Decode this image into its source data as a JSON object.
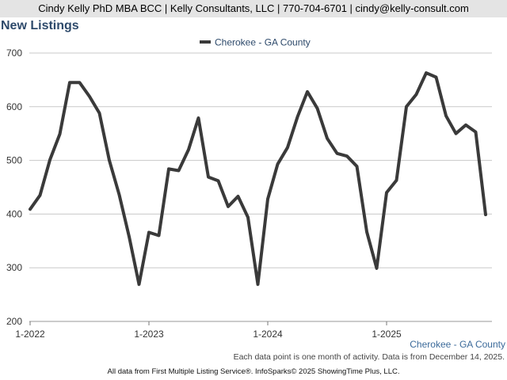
{
  "header": {
    "contact": "Cindy Kelly PhD MBA BCC | Kelly Consultants, LLC | 770-704-6701 | cindy@kelly-consult.com"
  },
  "chart_data": {
    "type": "line",
    "title": "New Listings",
    "xlabel": "",
    "ylabel": "",
    "ylim": [
      200,
      700
    ],
    "yticks": [
      200,
      300,
      400,
      500,
      600,
      700
    ],
    "xtick_labels": [
      "1-2022",
      "1-2023",
      "1-2024",
      "1-2025"
    ],
    "x_months_start": "1-2022",
    "legend_position": "top-center",
    "grid": true,
    "colors": {
      "line": "#3a3a3a",
      "grid": "#c9c9c9",
      "legend_text": "#2e4a6b"
    },
    "series": [
      {
        "name": "Cherokee - GA County",
        "values": [
          409,
          435,
          501,
          549,
          645,
          645,
          619,
          588,
          500,
          436,
          358,
          269,
          366,
          360,
          484,
          481,
          520,
          579,
          469,
          462,
          414,
          433,
          394,
          269,
          428,
          493,
          524,
          581,
          628,
          597,
          541,
          513,
          508,
          489,
          367,
          299,
          440,
          463,
          600,
          623,
          663,
          655,
          583,
          550,
          566,
          553,
          399
        ]
      }
    ]
  },
  "footer": {
    "region_label": "Cherokee - GA County",
    "note": "Each data point is one month of activity. Data is from December 14, 2025.",
    "source": "All data from First Multiple Listing Service®. InfoSparks© 2025 ShowingTime Plus, LLC."
  }
}
